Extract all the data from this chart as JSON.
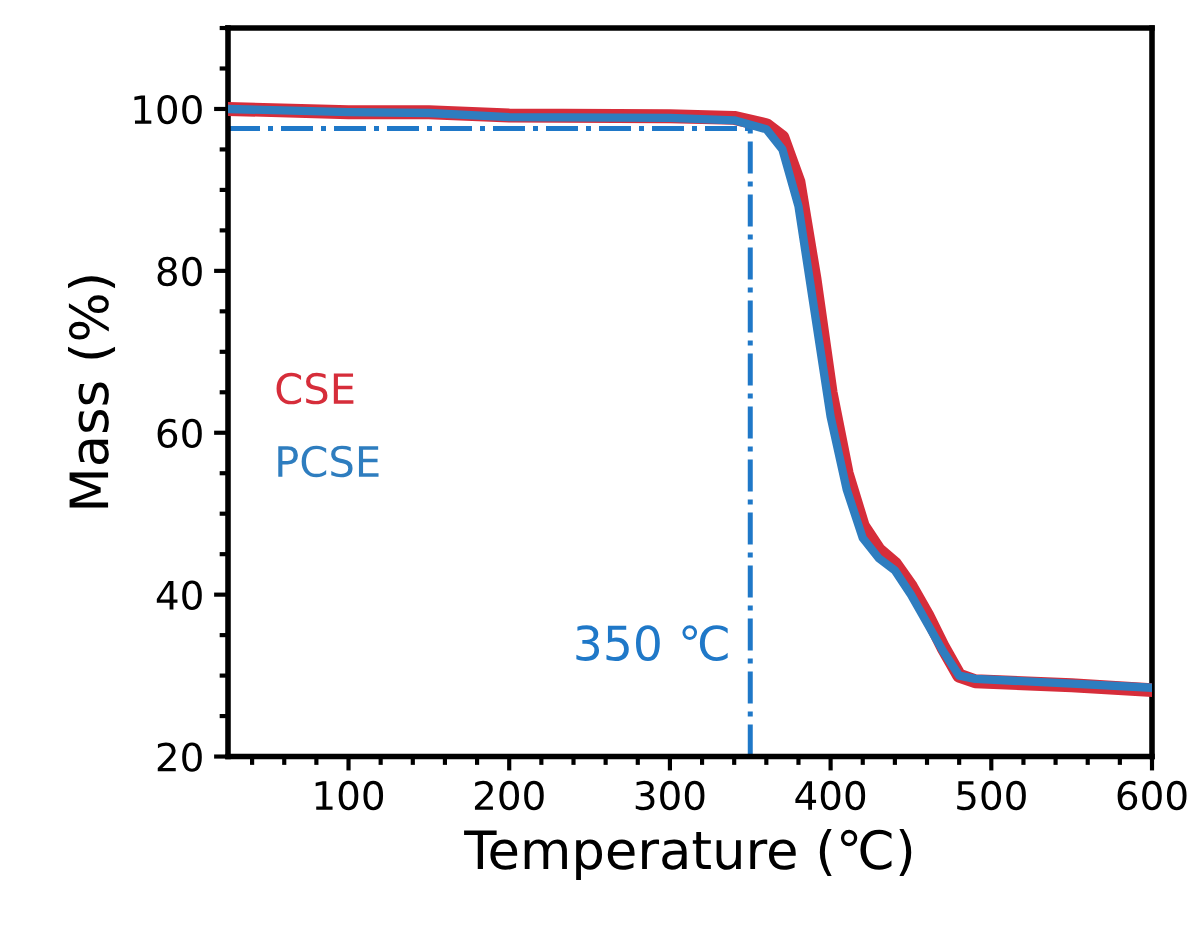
{
  "chart_data": {
    "type": "line",
    "xlabel": "Temperature (℃)",
    "ylabel": "Mass (%)",
    "xlim": [
      25,
      600
    ],
    "xticks": [
      100,
      200,
      300,
      400,
      500,
      600
    ],
    "ylim": [
      20,
      110
    ],
    "yticks": [
      20,
      40,
      60,
      80,
      100
    ],
    "grid": false,
    "legend": false,
    "line_style": "solid",
    "marker": "none",
    "series": [
      {
        "name": "CSE",
        "color": "#d62d3a",
        "x": [
          25,
          100,
          150,
          200,
          300,
          340,
          360,
          370,
          380,
          390,
          400,
          410,
          420,
          430,
          440,
          450,
          460,
          470,
          480,
          490,
          550,
          600
        ],
        "values": [
          100,
          99.6,
          99.6,
          99.2,
          99.1,
          98.9,
          98,
          96.5,
          91,
          79,
          65,
          55,
          48.5,
          45.5,
          43.8,
          41,
          37.5,
          33.5,
          30,
          29.3,
          28.8,
          28.2
        ]
      },
      {
        "name": "PCSE",
        "color": "#2e7dbf",
        "x": [
          25,
          100,
          150,
          200,
          300,
          340,
          360,
          370,
          380,
          390,
          400,
          410,
          420,
          430,
          440,
          450,
          460,
          470,
          480,
          490,
          550,
          600
        ],
        "values": [
          100,
          99.6,
          99.5,
          99.0,
          98.9,
          98.6,
          97.5,
          95,
          88,
          75,
          62,
          53,
          47,
          44.5,
          43,
          40,
          36.5,
          33,
          30,
          29.6,
          29,
          28.5
        ]
      }
    ],
    "ref_lines": [
      {
        "axis": "x",
        "value": 350,
        "label": "350 ℃",
        "color": "#1f78c8",
        "line_style": "dashdot"
      },
      {
        "axis": "y",
        "value": 97.6,
        "color": "#1f78c8",
        "line_style": "dashdot"
      }
    ]
  }
}
